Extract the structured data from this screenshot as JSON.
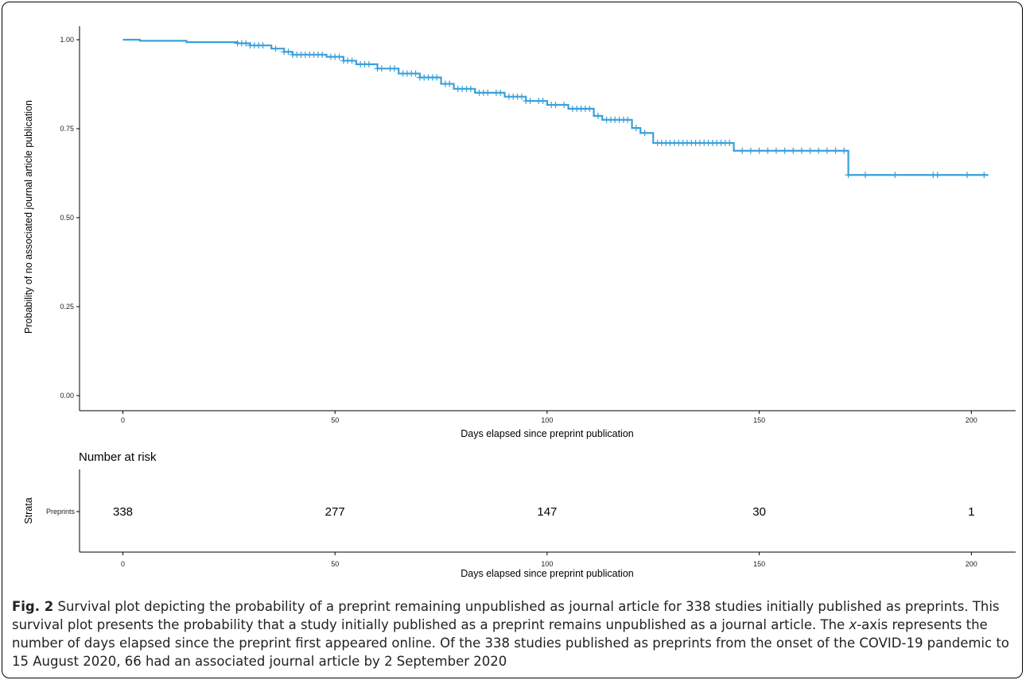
{
  "chart_data": [
    {
      "type": "line",
      "title": "",
      "xlabel": "Days elapsed since preprint publication",
      "ylabel": "Probability of no associated journal article publication",
      "xlim": [
        -5,
        210
      ],
      "ylim": [
        0,
        1
      ],
      "x_ticks": [
        0,
        50,
        100,
        150,
        200
      ],
      "x_tick_labels": [
        "0",
        "50",
        "100",
        "150",
        "200"
      ],
      "y_ticks": [
        0,
        0.25,
        0.5,
        0.75,
        1.0
      ],
      "y_tick_labels": [
        "0.00",
        "0.25",
        "0.50",
        "0.75",
        "1.00"
      ],
      "grid": false,
      "color": "#3a9fda",
      "series": [
        {
          "name": "",
          "x": [
            0,
            4,
            15,
            27,
            30,
            35,
            38,
            40,
            48,
            52,
            55,
            60,
            65,
            70,
            75,
            78,
            83,
            90,
            95,
            100,
            105,
            111,
            113,
            120,
            122,
            125,
            144,
            171,
            204
          ],
          "y": [
            1.0,
            0.997,
            0.993,
            0.99,
            0.984,
            0.975,
            0.966,
            0.958,
            0.952,
            0.941,
            0.931,
            0.919,
            0.905,
            0.894,
            0.876,
            0.862,
            0.851,
            0.84,
            0.828,
            0.817,
            0.806,
            0.786,
            0.775,
            0.752,
            0.738,
            0.71,
            0.688,
            0.62,
            0.62
          ]
        }
      ],
      "censor_marks_x": [
        27,
        28,
        29,
        30,
        31,
        32,
        33,
        36,
        38,
        39,
        40,
        41,
        42,
        43,
        44,
        45,
        46,
        47,
        49,
        50,
        51,
        52,
        53,
        54,
        56,
        57,
        58,
        60,
        61,
        63,
        64,
        66,
        67,
        68,
        69,
        70,
        71,
        72,
        73,
        74,
        76,
        77,
        79,
        80,
        81,
        82,
        84,
        85,
        86,
        88,
        89,
        91,
        92,
        93,
        94,
        95,
        96,
        98,
        99,
        101,
        102,
        104,
        106,
        107,
        108,
        109,
        110,
        112,
        114,
        115,
        116,
        117,
        118,
        119,
        121,
        123,
        126,
        127,
        128,
        129,
        130,
        131,
        132,
        133,
        134,
        135,
        136,
        137,
        138,
        139,
        140,
        141,
        142,
        143,
        146,
        148,
        150,
        152,
        154,
        156,
        158,
        160,
        162,
        164,
        166,
        168,
        170,
        171,
        175,
        182,
        191,
        192,
        199,
        203
      ]
    },
    {
      "type": "table",
      "title": "Number at risk",
      "ylabel": "Strata",
      "row_label": "Preprints",
      "xlabel": "Days elapsed since preprint publication",
      "x_ticks": [
        0,
        50,
        100,
        150,
        200
      ],
      "x_tick_labels": [
        "0",
        "50",
        "100",
        "150",
        "200"
      ],
      "values": [
        "338",
        "277",
        "147",
        "30",
        "1"
      ]
    }
  ],
  "caption": {
    "fig_label": "Fig. 2",
    "text_1": " Survival plot depicting the probability of a preprint remaining unpublished as journal article for 338 studies initially published as preprints. This survival plot presents the probability that a study initially published as a preprint remains unpublished as a journal article. The ",
    "x_italic": "x",
    "text_2": "-axis represents the number of days elapsed since the preprint first appeared online. Of the 338 studies published as preprints from the onset of the COVID-19 pandemic to 15 August 2020, 66 had an associated journal article by 2 September 2020"
  }
}
